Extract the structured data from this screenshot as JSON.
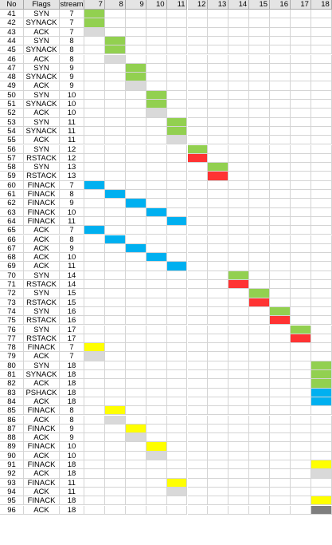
{
  "sheet": {
    "header": {
      "no": "No",
      "flags": "Flags",
      "stream": "stream"
    },
    "stream_columns": [
      7,
      8,
      9,
      10,
      11,
      12,
      13,
      14,
      15,
      16,
      17,
      18
    ],
    "rows": [
      {
        "no": 41,
        "flags": "SYN",
        "stream": 7,
        "mark_col": 7,
        "mark": "green"
      },
      {
        "no": 42,
        "flags": "SYNACK",
        "stream": 7,
        "mark_col": 7,
        "mark": "green"
      },
      {
        "no": 43,
        "flags": "ACK",
        "stream": 7,
        "mark_col": 7,
        "mark": "gray"
      },
      {
        "no": 44,
        "flags": "SYN",
        "stream": 8,
        "mark_col": 8,
        "mark": "green"
      },
      {
        "no": 45,
        "flags": "SYNACK",
        "stream": 8,
        "mark_col": 8,
        "mark": "green"
      },
      {
        "no": 46,
        "flags": "ACK",
        "stream": 8,
        "mark_col": 8,
        "mark": "gray"
      },
      {
        "no": 47,
        "flags": "SYN",
        "stream": 9,
        "mark_col": 9,
        "mark": "green"
      },
      {
        "no": 48,
        "flags": "SYNACK",
        "stream": 9,
        "mark_col": 9,
        "mark": "green"
      },
      {
        "no": 49,
        "flags": "ACK",
        "stream": 9,
        "mark_col": 9,
        "mark": "gray"
      },
      {
        "no": 50,
        "flags": "SYN",
        "stream": 10,
        "mark_col": 10,
        "mark": "green"
      },
      {
        "no": 51,
        "flags": "SYNACK",
        "stream": 10,
        "mark_col": 10,
        "mark": "green"
      },
      {
        "no": 52,
        "flags": "ACK",
        "stream": 10,
        "mark_col": 10,
        "mark": "gray"
      },
      {
        "no": 53,
        "flags": "SYN",
        "stream": 11,
        "mark_col": 11,
        "mark": "green"
      },
      {
        "no": 54,
        "flags": "SYNACK",
        "stream": 11,
        "mark_col": 11,
        "mark": "green"
      },
      {
        "no": 55,
        "flags": "ACK",
        "stream": 11,
        "mark_col": 11,
        "mark": "gray"
      },
      {
        "no": 56,
        "flags": "SYN",
        "stream": 12,
        "mark_col": 12,
        "mark": "green"
      },
      {
        "no": 57,
        "flags": "RSTACK",
        "stream": 12,
        "mark_col": 12,
        "mark": "red"
      },
      {
        "no": 58,
        "flags": "SYN",
        "stream": 13,
        "mark_col": 13,
        "mark": "green"
      },
      {
        "no": 59,
        "flags": "RSTACK",
        "stream": 13,
        "mark_col": 13,
        "mark": "red"
      },
      {
        "no": 60,
        "flags": "FINACK",
        "stream": 7,
        "mark_col": 7,
        "mark": "blue"
      },
      {
        "no": 61,
        "flags": "FINACK",
        "stream": 8,
        "mark_col": 8,
        "mark": "blue"
      },
      {
        "no": 62,
        "flags": "FINACK",
        "stream": 9,
        "mark_col": 9,
        "mark": "blue"
      },
      {
        "no": 63,
        "flags": "FINACK",
        "stream": 10,
        "mark_col": 10,
        "mark": "blue"
      },
      {
        "no": 64,
        "flags": "FINACK",
        "stream": 11,
        "mark_col": 11,
        "mark": "blue"
      },
      {
        "no": 65,
        "flags": "ACK",
        "stream": 7,
        "mark_col": 7,
        "mark": "blue"
      },
      {
        "no": 66,
        "flags": "ACK",
        "stream": 8,
        "mark_col": 8,
        "mark": "blue"
      },
      {
        "no": 67,
        "flags": "ACK",
        "stream": 9,
        "mark_col": 9,
        "mark": "blue"
      },
      {
        "no": 68,
        "flags": "ACK",
        "stream": 10,
        "mark_col": 10,
        "mark": "blue"
      },
      {
        "no": 69,
        "flags": "ACK",
        "stream": 11,
        "mark_col": 11,
        "mark": "blue"
      },
      {
        "no": 70,
        "flags": "SYN",
        "stream": 14,
        "mark_col": 14,
        "mark": "green"
      },
      {
        "no": 71,
        "flags": "RSTACK",
        "stream": 14,
        "mark_col": 14,
        "mark": "red"
      },
      {
        "no": 72,
        "flags": "SYN",
        "stream": 15,
        "mark_col": 15,
        "mark": "green"
      },
      {
        "no": 73,
        "flags": "RSTACK",
        "stream": 15,
        "mark_col": 15,
        "mark": "red"
      },
      {
        "no": 74,
        "flags": "SYN",
        "stream": 16,
        "mark_col": 16,
        "mark": "green"
      },
      {
        "no": 75,
        "flags": "RSTACK",
        "stream": 16,
        "mark_col": 16,
        "mark": "red"
      },
      {
        "no": 76,
        "flags": "SYN",
        "stream": 17,
        "mark_col": 17,
        "mark": "green"
      },
      {
        "no": 77,
        "flags": "RSTACK",
        "stream": 17,
        "mark_col": 17,
        "mark": "red"
      },
      {
        "no": 78,
        "flags": "FINACK",
        "stream": 7,
        "mark_col": 7,
        "mark": "yellow"
      },
      {
        "no": 79,
        "flags": "ACK",
        "stream": 7,
        "mark_col": 7,
        "mark": "gray"
      },
      {
        "no": 80,
        "flags": "SYN",
        "stream": 18,
        "mark_col": 18,
        "mark": "green"
      },
      {
        "no": 81,
        "flags": "SYNACK",
        "stream": 18,
        "mark_col": 18,
        "mark": "green"
      },
      {
        "no": 82,
        "flags": "ACK",
        "stream": 18,
        "mark_col": 18,
        "mark": "green"
      },
      {
        "no": 83,
        "flags": "PSHACK",
        "stream": 18,
        "mark_col": 18,
        "mark": "blue"
      },
      {
        "no": 84,
        "flags": "ACK",
        "stream": 18,
        "mark_col": 18,
        "mark": "blue"
      },
      {
        "no": 85,
        "flags": "FINACK",
        "stream": 8,
        "mark_col": 8,
        "mark": "yellow"
      },
      {
        "no": 86,
        "flags": "ACK",
        "stream": 8,
        "mark_col": 8,
        "mark": "gray"
      },
      {
        "no": 87,
        "flags": "FINACK",
        "stream": 9,
        "mark_col": 9,
        "mark": "yellow"
      },
      {
        "no": 88,
        "flags": "ACK",
        "stream": 9,
        "mark_col": 9,
        "mark": "gray"
      },
      {
        "no": 89,
        "flags": "FINACK",
        "stream": 10,
        "mark_col": 10,
        "mark": "yellow"
      },
      {
        "no": 90,
        "flags": "ACK",
        "stream": 10,
        "mark_col": 10,
        "mark": "gray"
      },
      {
        "no": 91,
        "flags": "FINACK",
        "stream": 18,
        "mark_col": 18,
        "mark": "yellow"
      },
      {
        "no": 92,
        "flags": "ACK",
        "stream": 18,
        "mark_col": 18,
        "mark": "gray"
      },
      {
        "no": 93,
        "flags": "FINACK",
        "stream": 11,
        "mark_col": 11,
        "mark": "yellow"
      },
      {
        "no": 94,
        "flags": "ACK",
        "stream": 11,
        "mark_col": 11,
        "mark": "gray"
      },
      {
        "no": 95,
        "flags": "FINACK",
        "stream": 18,
        "mark_col": 18,
        "mark": "yellow"
      },
      {
        "no": 96,
        "flags": "ACK",
        "stream": 18,
        "mark_col": 18,
        "mark": "darkgray"
      }
    ]
  },
  "colors": {
    "green": "#92d050",
    "gray": "#d9d9d9",
    "red": "#ff3333",
    "blue": "#00b0f0",
    "yellow": "#ffff00",
    "darkgray": "#7f7f7f",
    "header_bg": "#e4e4e4",
    "grid": "#d4d4d4"
  }
}
